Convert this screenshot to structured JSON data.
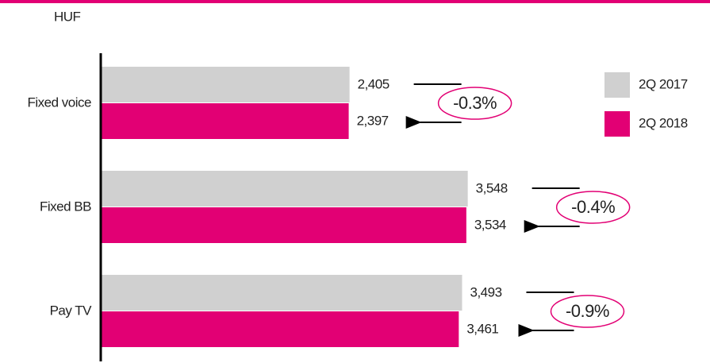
{
  "chart_data": {
    "type": "bar",
    "orientation": "horizontal",
    "unit_label": "HUF",
    "categories": [
      "Fixed voice",
      "Fixed BB",
      "Pay TV"
    ],
    "series": [
      {
        "name": "2Q 2017",
        "color": "#d0d0d0",
        "values": [
          2405,
          3548,
          3493
        ],
        "value_labels": [
          "2,405",
          "3,548",
          "3,493"
        ]
      },
      {
        "name": "2Q 2018",
        "color": "#e20074",
        "values": [
          2397,
          3534,
          3461
        ],
        "value_labels": [
          "2,397",
          "3,534",
          "3,461"
        ]
      }
    ],
    "annotations": [
      "-0.3%",
      "-0.4%",
      "-0.9%"
    ],
    "xlim": [
      0,
      5000
    ],
    "legend": "right",
    "accent_color": "#e20074"
  }
}
